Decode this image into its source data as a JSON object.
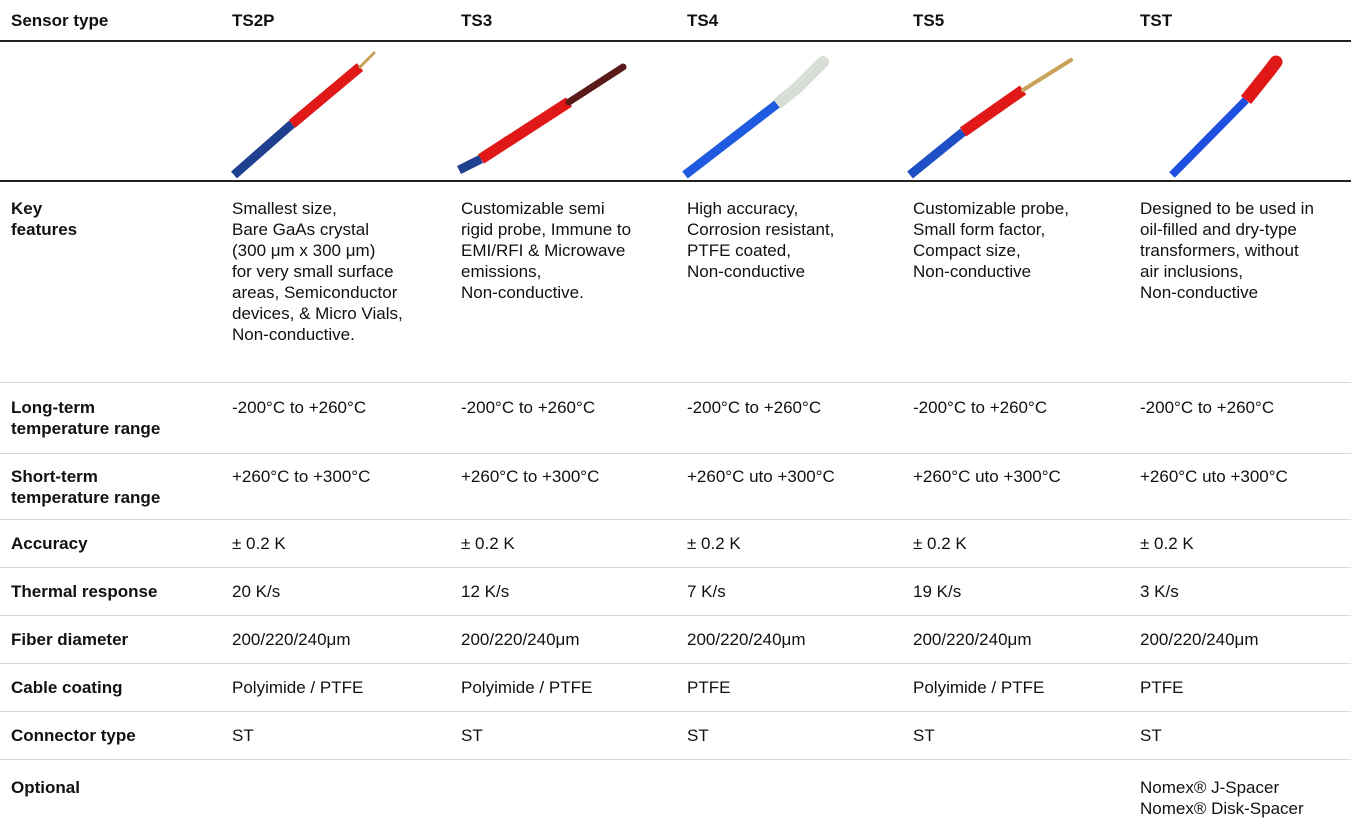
{
  "header": {
    "label": "Sensor type",
    "sensors": [
      "TS2P",
      "TS3",
      "TS4",
      "TS5",
      "TST"
    ]
  },
  "probe_images": [
    {
      "name": "TS2P",
      "cable_color": "#1f3f8f",
      "sleeve_color": "#e01818",
      "tip_color": "#c9a25a"
    },
    {
      "name": "TS3",
      "cable_color": "#1f3f8f",
      "sleeve_color": "#e01818",
      "tip_color": "#5b1a1a"
    },
    {
      "name": "TS4",
      "cable_color": "#1e5be0",
      "sleeve_color": "#d8ddd6",
      "tip_color": "#d8ddd6"
    },
    {
      "name": "TS5",
      "cable_color": "#1f4fc6",
      "sleeve_color": "#e01818",
      "tip_color": "#c9a25a"
    },
    {
      "name": "TST",
      "cable_color": "#1e4fe0",
      "sleeve_color": "#e01818",
      "tip_color": "#e01818"
    }
  ],
  "rows": {
    "features": {
      "label": "Key\nfeatures",
      "values": [
        "Smallest size,\nBare GaAs crystal\n(300 μm x 300 μm)\nfor very small surface\nareas, Semiconductor\ndevices, & Micro Vials,\nNon-conductive.",
        "Customizable semi\nrigid probe, Immune to\nEMI/RFI & Microwave\nemissions,\nNon-conductive.",
        "High accuracy,\nCorrosion resistant,\nPTFE coated,\nNon-conductive",
        "Customizable probe,\nSmall form factor,\nCompact size,\nNon-conductive",
        "Designed to be used in\noil-filled and dry-type\ntransformers, without\nair inclusions,\nNon-conductive"
      ]
    },
    "longterm": {
      "label": "Long-term\ntemperature range",
      "values": [
        "-200°C  to +260°C",
        "-200°C to +260°C",
        "-200°C to +260°C",
        "-200°C  to +260°C",
        "-200°C  to +260°C"
      ]
    },
    "shortterm": {
      "label": "Short-term\ntemperature range",
      "values": [
        "+260°C to +300°C",
        "+260°C  to +300°C",
        "+260°C uto +300°C",
        "+260°C uto +300°C",
        "+260°C uto +300°C"
      ]
    },
    "accuracy": {
      "label": "Accuracy",
      "values": [
        "± 0.2 K",
        "± 0.2 K",
        "± 0.2 K",
        "± 0.2 K",
        "± 0.2 K"
      ]
    },
    "thermal": {
      "label": "Thermal response",
      "values": [
        "20 K/s",
        "12 K/s",
        "7 K/s",
        "19 K/s",
        "3 K/s"
      ]
    },
    "fiber": {
      "label": "Fiber diameter",
      "values": [
        "200/220/240μm",
        "200/220/240μm",
        "200/220/240μm",
        "200/220/240μm",
        "200/220/240μm"
      ]
    },
    "coating": {
      "label": "Cable coating",
      "values": [
        "Polyimide / PTFE",
        "Polyimide / PTFE",
        "PTFE",
        "Polyimide / PTFE",
        "PTFE"
      ]
    },
    "connector": {
      "label": "Connector type",
      "values": [
        "ST",
        "ST",
        "ST",
        "ST",
        "ST"
      ]
    },
    "optional": {
      "label": "Optional",
      "values": [
        "",
        "",
        "",
        "",
        "Nomex® J-Spacer\nNomex® Disk-Spacer"
      ]
    }
  }
}
